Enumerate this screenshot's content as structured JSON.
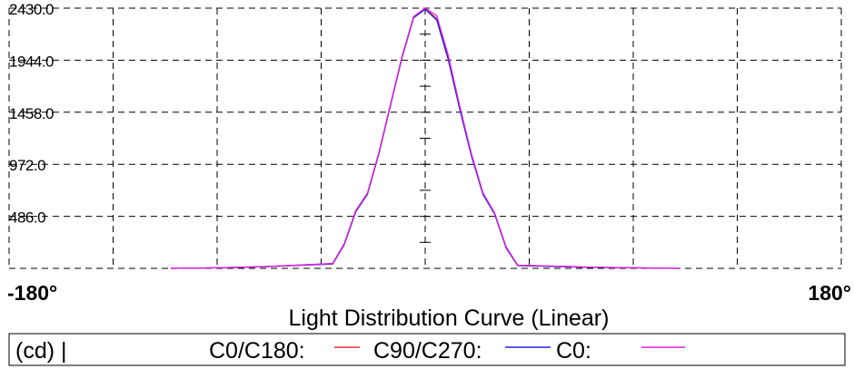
{
  "chart_data": {
    "type": "line",
    "title": "Light Distribution Curve (Linear)",
    "xlabel": "",
    "ylabel": "",
    "x_ticks": [
      "-180°",
      "180°"
    ],
    "y_ticks": [
      "486.0",
      "972.0",
      "1458.0",
      "1944.0",
      "2430.0"
    ],
    "xlim": [
      -180,
      180
    ],
    "ylim": [
      0,
      2430
    ],
    "grid": true,
    "legend": {
      "position": "bottom",
      "unit_label": "(cd) |",
      "entries": [
        "C0/C180:",
        "C90/C270:",
        "C0:"
      ]
    },
    "x": [
      -110,
      -90,
      -70,
      -40,
      -35,
      -30,
      -25,
      -20,
      -15,
      -10,
      -5,
      0,
      5,
      10,
      15,
      20,
      25,
      30,
      35,
      40,
      70,
      90,
      110
    ],
    "series": [
      {
        "name": "C0/C180:",
        "color": "#e0303a",
        "values": [
          0,
          5,
          15,
          45,
          230,
          540,
          700,
          1080,
          1530,
          1980,
          2350,
          2430,
          2330,
          1960,
          1490,
          1060,
          700,
          520,
          200,
          30,
          12,
          5,
          0
        ]
      },
      {
        "name": "C90/C270:",
        "color": "#2020d0",
        "values": [
          0,
          5,
          15,
          40,
          220,
          530,
          690,
          1070,
          1520,
          1970,
          2340,
          2420,
          2320,
          1950,
          1480,
          1050,
          690,
          510,
          190,
          25,
          10,
          5,
          0
        ]
      },
      {
        "name": "C0:",
        "color": "#e020e0",
        "values": [
          0,
          5,
          15,
          45,
          230,
          540,
          700,
          1080,
          1530,
          1980,
          2350,
          2430,
          2360,
          1990,
          1510,
          1070,
          705,
          520,
          200,
          30,
          12,
          5,
          0
        ]
      }
    ]
  }
}
